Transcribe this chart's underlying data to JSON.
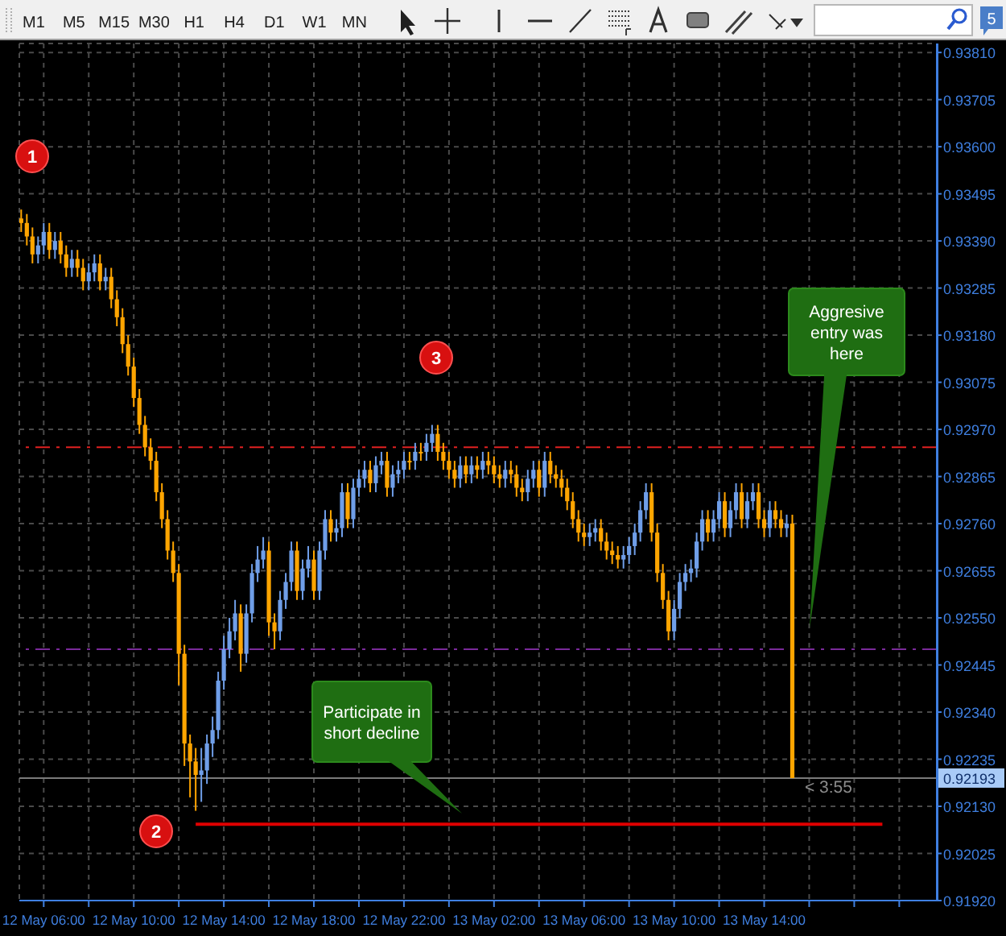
{
  "chart_data": {
    "type": "candlestick",
    "xlim": [
      "--05-12T04:55",
      "--05-13T21:40"
    ],
    "xticks": [
      {
        "value": "--05-12T06:00",
        "label": "12 May 06:00"
      },
      {
        "value": "--05-12T08:00",
        "label": null
      },
      {
        "value": "--05-12T10:00",
        "label": "12 May 10:00"
      },
      {
        "value": "--05-12T12:00",
        "label": null
      },
      {
        "value": "--05-12T14:00",
        "label": "12 May 14:00"
      },
      {
        "value": "--05-12T16:00",
        "label": null
      },
      {
        "value": "--05-12T18:00",
        "label": "12 May 18:00"
      },
      {
        "value": "--05-12T20:00",
        "label": null
      },
      {
        "value": "--05-12T22:00",
        "label": "12 May 22:00"
      },
      {
        "value": "--05-13T00:00",
        "label": null
      },
      {
        "value": "--05-13T02:00",
        "label": "13 May 02:00"
      },
      {
        "value": "--05-13T04:00",
        "label": null
      },
      {
        "value": "--05-13T06:00",
        "label": "13 May 06:00"
      },
      {
        "value": "--05-13T08:00",
        "label": null
      },
      {
        "value": "--05-13T10:00",
        "label": "13 May 10:00"
      },
      {
        "value": "--05-13T12:00",
        "label": null
      },
      {
        "value": "--05-13T14:00",
        "label": "13 May 14:00"
      },
      {
        "value": "--05-13T16:00",
        "label": null
      },
      {
        "value": "--05-13T18:00",
        "label": null
      },
      {
        "value": "--05-13T20:00",
        "label": null
      }
    ],
    "ylim": [
      0.9192,
      0.9383
    ],
    "yticks": [
      {
        "value": 0.9381,
        "label": "0.93810"
      },
      {
        "value": 0.93705,
        "label": "0.93705"
      },
      {
        "value": 0.936,
        "label": "0.93600"
      },
      {
        "value": 0.93495,
        "label": "0.93495"
      },
      {
        "value": 0.9339,
        "label": "0.93390"
      },
      {
        "value": 0.93285,
        "label": "0.93285"
      },
      {
        "value": 0.9318,
        "label": "0.93180"
      },
      {
        "value": 0.93075,
        "label": "0.93075"
      },
      {
        "value": 0.9297,
        "label": "0.92970"
      },
      {
        "value": 0.92865,
        "label": "0.92865"
      },
      {
        "value": 0.9276,
        "label": "0.92760"
      },
      {
        "value": 0.92655,
        "label": "0.92655"
      },
      {
        "value": 0.9255,
        "label": "0.92550"
      },
      {
        "value": 0.92445,
        "label": "0.92445"
      },
      {
        "value": 0.9234,
        "label": "0.92340"
      },
      {
        "value": 0.92235,
        "label": "0.92235"
      },
      {
        "value": 0.9213,
        "label": "0.92130"
      },
      {
        "value": 0.92025,
        "label": "0.92025"
      },
      {
        "value": 0.9192,
        "label": "0.91920"
      }
    ],
    "grid": true,
    "series": [
      {
        "type": "candlestick",
        "color": "#6f9ee8",
        "x": [
          "--05-12T05:45",
          "--05-12T06:00",
          "--05-12T06:30",
          "--05-12T07:15",
          "--05-12T08:00",
          "--05-12T08:15",
          "--05-12T08:45",
          "--05-12T13:00",
          "--05-12T13:15",
          "--05-12T13:30",
          "--05-12T13:45",
          "--05-12T14:00",
          "--05-12T14:15",
          "--05-12T14:30",
          "--05-12T15:00",
          "--05-12T15:15",
          "--05-12T15:30",
          "--05-12T15:45",
          "--05-12T16:30",
          "--05-12T16:45",
          "--05-12T17:00",
          "--05-12T17:30",
          "--05-12T17:45",
          "--05-12T18:15",
          "--05-12T18:30",
          "--05-12T19:00",
          "--05-12T19:15",
          "--05-12T19:45",
          "--05-12T20:00",
          "--05-12T20:15",
          "--05-12T20:45",
          "--05-12T21:00",
          "--05-12T21:30",
          "--05-12T21:45",
          "--05-12T22:00",
          "--05-12T22:30",
          "--05-12T23:00",
          "--05-12T23:15",
          "--05-13T00:30",
          "--05-13T01:00",
          "--05-13T01:30",
          "--05-13T02:30",
          "--05-13T03:30",
          "--05-13T03:45",
          "--05-13T04:15",
          "--05-13T06:15",
          "--05-13T06:30",
          "--05-13T07:45",
          "--05-13T08:00",
          "--05-13T08:15",
          "--05-13T08:30",
          "--05-13T08:45",
          "--05-13T10:00",
          "--05-13T10:15",
          "--05-13T10:30",
          "--05-13T10:45",
          "--05-13T11:00",
          "--05-13T11:15",
          "--05-13T11:45",
          "--05-13T12:00",
          "--05-13T12:30",
          "--05-13T12:45",
          "--05-13T13:15",
          "--05-13T13:30",
          "--05-13T14:15",
          "--05-13T15:00"
        ],
        "ohlc": [
          [
            0.9336,
            0.934,
            0.9334,
            0.9338
          ],
          [
            0.9338,
            0.9343,
            0.9336,
            0.9341
          ],
          [
            0.9337,
            0.9341,
            0.9335,
            0.9339
          ],
          [
            0.9333,
            0.9337,
            0.9331,
            0.9335
          ],
          [
            0.933,
            0.9334,
            0.9328,
            0.9332
          ],
          [
            0.9332,
            0.9336,
            0.933,
            0.9334
          ],
          [
            0.933,
            0.9333,
            0.9328,
            0.9331
          ],
          [
            0.922,
            0.9226,
            0.9214,
            0.9221
          ],
          [
            0.9221,
            0.9229,
            0.9218,
            0.9227
          ],
          [
            0.9227,
            0.9233,
            0.9224,
            0.923
          ],
          [
            0.923,
            0.9243,
            0.9228,
            0.9241
          ],
          [
            0.9241,
            0.9251,
            0.9239,
            0.9248
          ],
          [
            0.9248,
            0.9255,
            0.9246,
            0.9252
          ],
          [
            0.9252,
            0.9259,
            0.925,
            0.9256
          ],
          [
            0.9247,
            0.9258,
            0.9245,
            0.9256
          ],
          [
            0.9256,
            0.9267,
            0.9254,
            0.9265
          ],
          [
            0.9265,
            0.9271,
            0.9263,
            0.9268
          ],
          [
            0.9268,
            0.9273,
            0.9266,
            0.927
          ],
          [
            0.9252,
            0.9261,
            0.925,
            0.9259
          ],
          [
            0.9259,
            0.9265,
            0.9257,
            0.9263
          ],
          [
            0.9263,
            0.9272,
            0.9261,
            0.927
          ],
          [
            0.9261,
            0.9268,
            0.9259,
            0.9266
          ],
          [
            0.9266,
            0.9271,
            0.9264,
            0.9268
          ],
          [
            0.9261,
            0.9272,
            0.9259,
            0.927
          ],
          [
            0.927,
            0.9279,
            0.9268,
            0.9277
          ],
          [
            0.9274,
            0.9277,
            0.9272,
            0.9275
          ],
          [
            0.9275,
            0.9285,
            0.9273,
            0.9283
          ],
          [
            0.9277,
            0.9286,
            0.9275,
            0.9284
          ],
          [
            0.9284,
            0.9288,
            0.9282,
            0.9286
          ],
          [
            0.9286,
            0.929,
            0.9284,
            0.9288
          ],
          [
            0.9285,
            0.9291,
            0.9283,
            0.9289
          ],
          [
            0.9289,
            0.9292,
            0.9287,
            0.929
          ],
          [
            0.9284,
            0.9289,
            0.9282,
            0.9287
          ],
          [
            0.9287,
            0.929,
            0.9285,
            0.9288
          ],
          [
            0.9288,
            0.9292,
            0.9286,
            0.929
          ],
          [
            0.929,
            0.9294,
            0.9288,
            0.9292
          ],
          [
            0.9292,
            0.9296,
            0.929,
            0.9294
          ],
          [
            0.9294,
            0.9298,
            0.9292,
            0.9296
          ],
          [
            0.9286,
            0.9291,
            0.9284,
            0.9289
          ],
          [
            0.9287,
            0.9291,
            0.9285,
            0.9289
          ],
          [
            0.9288,
            0.9292,
            0.9286,
            0.929
          ],
          [
            0.9286,
            0.929,
            0.9284,
            0.9288
          ],
          [
            0.9283,
            0.9288,
            0.9281,
            0.9286
          ],
          [
            0.9286,
            0.929,
            0.9284,
            0.9288
          ],
          [
            0.9284,
            0.9292,
            0.9282,
            0.929
          ],
          [
            0.9273,
            0.9276,
            0.9271,
            0.9274
          ],
          [
            0.9274,
            0.9277,
            0.9272,
            0.9275
          ],
          [
            0.9268,
            0.9271,
            0.9266,
            0.9269
          ],
          [
            0.9269,
            0.9273,
            0.9267,
            0.9271
          ],
          [
            0.9271,
            0.9276,
            0.9269,
            0.9274
          ],
          [
            0.9274,
            0.9281,
            0.9272,
            0.9279
          ],
          [
            0.9279,
            0.9285,
            0.9277,
            0.9283
          ],
          [
            0.9252,
            0.9259,
            0.925,
            0.9257
          ],
          [
            0.9257,
            0.9265,
            0.9255,
            0.9263
          ],
          [
            0.9263,
            0.9267,
            0.9261,
            0.9265
          ],
          [
            0.9265,
            0.9268,
            0.9263,
            0.9266
          ],
          [
            0.9266,
            0.9274,
            0.9264,
            0.9272
          ],
          [
            0.9272,
            0.9279,
            0.927,
            0.9277
          ],
          [
            0.9274,
            0.9279,
            0.9272,
            0.9277
          ],
          [
            0.9277,
            0.9283,
            0.9275,
            0.9281
          ],
          [
            0.9275,
            0.9281,
            0.9273,
            0.9279
          ],
          [
            0.9279,
            0.9285,
            0.9277,
            0.9283
          ],
          [
            0.9277,
            0.9283,
            0.9275,
            0.9281
          ],
          [
            0.9281,
            0.9285,
            0.9279,
            0.9283
          ],
          [
            0.9275,
            0.9281,
            0.9273,
            0.9279
          ],
          [
            0.9275,
            0.9278,
            0.9273,
            0.9276
          ]
        ]
      },
      {
        "type": "candlestick",
        "color": "#ffa500",
        "x": [
          "--05-12T05:00",
          "--05-12T05:15",
          "--05-12T05:30",
          "--05-12T06:15",
          "--05-12T06:45",
          "--05-12T07:00",
          "--05-12T07:30",
          "--05-12T07:45",
          "--05-12T08:30",
          "--05-12T09:00",
          "--05-12T09:15",
          "--05-12T09:30",
          "--05-12T09:45",
          "--05-12T10:00",
          "--05-12T10:15",
          "--05-12T10:30",
          "--05-12T10:45",
          "--05-12T11:00",
          "--05-12T11:15",
          "--05-12T11:30",
          "--05-12T11:45",
          "--05-12T12:00",
          "--05-12T12:15",
          "--05-12T12:30",
          "--05-12T12:45",
          "--05-12T14:45",
          "--05-12T16:00",
          "--05-12T16:15",
          "--05-12T17:15",
          "--05-12T18:00",
          "--05-12T18:45",
          "--05-12T19:30",
          "--05-12T20:30",
          "--05-12T21:15",
          "--05-12T22:15",
          "--05-12T22:45",
          "--05-12T23:30",
          "--05-12T23:45",
          "--05-13T00:00",
          "--05-13T00:15",
          "--05-13T00:45",
          "--05-13T01:15",
          "--05-13T01:45",
          "--05-13T02:00",
          "--05-13T02:15",
          "--05-13T02:45",
          "--05-13T03:00",
          "--05-13T03:15",
          "--05-13T04:00",
          "--05-13T04:30",
          "--05-13T04:45",
          "--05-13T05:00",
          "--05-13T05:15",
          "--05-13T05:30",
          "--05-13T05:45",
          "--05-13T06:00",
          "--05-13T06:45",
          "--05-13T07:00",
          "--05-13T07:15",
          "--05-13T07:30",
          "--05-13T09:00",
          "--05-13T09:15",
          "--05-13T09:30",
          "--05-13T09:45",
          "--05-13T11:30",
          "--05-13T12:15",
          "--05-13T13:00",
          "--05-13T13:45",
          "--05-13T14:00",
          "--05-13T14:30",
          "--05-13T14:45",
          "--05-13T15:15"
        ],
        "ohlc": [
          [
            0.9344,
            0.9346,
            0.9341,
            0.9343
          ],
          [
            0.9343,
            0.9345,
            0.9338,
            0.934
          ],
          [
            0.934,
            0.9342,
            0.9334,
            0.9336
          ],
          [
            0.9341,
            0.9343,
            0.9335,
            0.9337
          ],
          [
            0.9339,
            0.9341,
            0.9334,
            0.9336
          ],
          [
            0.9336,
            0.9338,
            0.9331,
            0.9333
          ],
          [
            0.9335,
            0.9337,
            0.9331,
            0.9333
          ],
          [
            0.9333,
            0.9335,
            0.9328,
            0.933
          ],
          [
            0.9334,
            0.9336,
            0.9328,
            0.933
          ],
          [
            0.9331,
            0.9333,
            0.9324,
            0.9326
          ],
          [
            0.9326,
            0.9328,
            0.932,
            0.9322
          ],
          [
            0.9322,
            0.9324,
            0.9314,
            0.9316
          ],
          [
            0.9316,
            0.9318,
            0.9309,
            0.9311
          ],
          [
            0.9311,
            0.9313,
            0.9302,
            0.9304
          ],
          [
            0.9304,
            0.9306,
            0.9296,
            0.9298
          ],
          [
            0.9298,
            0.93,
            0.9291,
            0.9293
          ],
          [
            0.9293,
            0.9295,
            0.9288,
            0.929
          ],
          [
            0.929,
            0.9292,
            0.9281,
            0.9283
          ],
          [
            0.9283,
            0.9285,
            0.9275,
            0.9277
          ],
          [
            0.9277,
            0.9279,
            0.9268,
            0.927
          ],
          [
            0.927,
            0.9272,
            0.9263,
            0.9265
          ],
          [
            0.9265,
            0.9267,
            0.924,
            0.9247
          ],
          [
            0.9247,
            0.9249,
            0.9222,
            0.9227
          ],
          [
            0.9227,
            0.9229,
            0.9215,
            0.9223
          ],
          [
            0.9223,
            0.9226,
            0.9212,
            0.922
          ],
          [
            0.9256,
            0.9258,
            0.9243,
            0.9247
          ],
          [
            0.927,
            0.9272,
            0.9251,
            0.9254
          ],
          [
            0.9254,
            0.9256,
            0.9248,
            0.9252
          ],
          [
            0.927,
            0.9272,
            0.9259,
            0.9261
          ],
          [
            0.9268,
            0.927,
            0.9259,
            0.9261
          ],
          [
            0.9277,
            0.9279,
            0.9272,
            0.9274
          ],
          [
            0.9283,
            0.9285,
            0.9275,
            0.9277
          ],
          [
            0.9288,
            0.929,
            0.9283,
            0.9285
          ],
          [
            0.929,
            0.9292,
            0.9282,
            0.9284
          ],
          [
            0.929,
            0.9292,
            0.9288,
            0.929
          ],
          [
            0.9292,
            0.9294,
            0.929,
            0.9292
          ],
          [
            0.9296,
            0.9298,
            0.929,
            0.9292
          ],
          [
            0.9292,
            0.9294,
            0.9288,
            0.929
          ],
          [
            0.929,
            0.9292,
            0.9286,
            0.9288
          ],
          [
            0.9288,
            0.929,
            0.9284,
            0.9286
          ],
          [
            0.9289,
            0.9291,
            0.9285,
            0.9287
          ],
          [
            0.9289,
            0.9291,
            0.9286,
            0.9288
          ],
          [
            0.929,
            0.9292,
            0.9287,
            0.9289
          ],
          [
            0.9289,
            0.9291,
            0.9285,
            0.9287
          ],
          [
            0.9287,
            0.9289,
            0.9284,
            0.9286
          ],
          [
            0.9288,
            0.929,
            0.9285,
            0.9287
          ],
          [
            0.9287,
            0.9289,
            0.9282,
            0.9284
          ],
          [
            0.9284,
            0.9286,
            0.9281,
            0.9283
          ],
          [
            0.9288,
            0.929,
            0.9282,
            0.9284
          ],
          [
            0.929,
            0.9292,
            0.9285,
            0.9287
          ],
          [
            0.9287,
            0.9289,
            0.9284,
            0.9286
          ],
          [
            0.9286,
            0.9288,
            0.9282,
            0.9284
          ],
          [
            0.9284,
            0.9286,
            0.9279,
            0.9281
          ],
          [
            0.9281,
            0.9283,
            0.9275,
            0.9277
          ],
          [
            0.9277,
            0.9279,
            0.9272,
            0.9274
          ],
          [
            0.9274,
            0.9276,
            0.9271,
            0.9273
          ],
          [
            0.9275,
            0.9277,
            0.927,
            0.9272
          ],
          [
            0.9272,
            0.9274,
            0.9268,
            0.927
          ],
          [
            0.927,
            0.9272,
            0.9267,
            0.9269
          ],
          [
            0.9269,
            0.9271,
            0.9266,
            0.9268
          ],
          [
            0.9283,
            0.9285,
            0.9272,
            0.9274
          ],
          [
            0.9274,
            0.9276,
            0.9263,
            0.9265
          ],
          [
            0.9265,
            0.9267,
            0.9257,
            0.9259
          ],
          [
            0.9259,
            0.9261,
            0.925,
            0.9252
          ],
          [
            0.9277,
            0.9279,
            0.9272,
            0.9274
          ],
          [
            0.9281,
            0.9283,
            0.9273,
            0.9275
          ],
          [
            0.9283,
            0.9285,
            0.9275,
            0.9277
          ],
          [
            0.9283,
            0.9285,
            0.9275,
            0.9277
          ],
          [
            0.9277,
            0.9279,
            0.9273,
            0.9275
          ],
          [
            0.9279,
            0.9281,
            0.9275,
            0.9277
          ],
          [
            0.9277,
            0.9279,
            0.9273,
            0.9275
          ],
          [
            0.9276,
            0.9278,
            0.92193,
            0.92193
          ]
        ]
      },
      {
        "type": "line",
        "color": "#e00000",
        "x": [
          "--05-12T12:45",
          "--05-13T19:15"
        ],
        "values": [
          0.9209,
          0.9209
        ]
      }
    ],
    "ref_lines": [
      {
        "axis": "y",
        "value": 0.9293,
        "color": "#e02020",
        "line_style": "dashed"
      },
      {
        "axis": "y",
        "value": 0.9248,
        "color": "#7a2a9a",
        "line_style": "dashed"
      },
      {
        "axis": "y",
        "value": 0.92193,
        "label": "0.92193",
        "color": "#7a7a7a",
        "line_style": "solid"
      }
    ],
    "annotations": [
      "1",
      "2",
      "3",
      "Participate in short decline",
      "Aggresive entry was here",
      "< 3:55",
      "M1",
      "M5",
      "M15",
      "M30",
      "H1",
      "H4",
      "D1",
      "W1",
      "MN",
      "5"
    ]
  }
}
